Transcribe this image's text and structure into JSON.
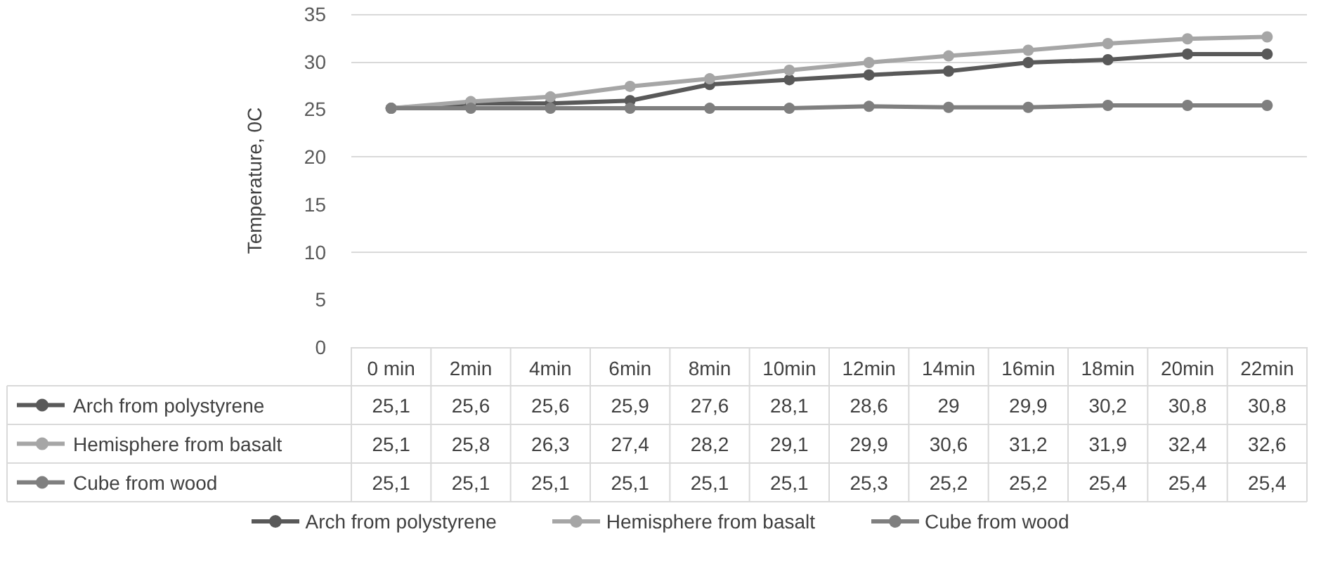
{
  "chart_data": {
    "type": "line",
    "ylabel": "Temperature, 0C",
    "categories": [
      "0 min",
      "2min",
      "4min",
      "6min",
      "8min",
      "10min",
      "12min",
      "14min",
      "16min",
      "18min",
      "20min",
      "22min"
    ],
    "series": [
      {
        "name": "Arch from polystyrene",
        "color": "#595959",
        "values": [
          25.1,
          25.6,
          25.6,
          25.9,
          27.6,
          28.1,
          28.6,
          29,
          29.9,
          30.2,
          30.8,
          30.8
        ],
        "value_labels": [
          "25,1",
          "25,6",
          "25,6",
          "25,9",
          "27,6",
          "28,1",
          "28,6",
          "29",
          "29,9",
          "30,2",
          "30,8",
          "30,8"
        ]
      },
      {
        "name": "Hemisphere from basalt",
        "color": "#a6a6a6",
        "values": [
          25.1,
          25.8,
          26.3,
          27.4,
          28.2,
          29.1,
          29.9,
          30.6,
          31.2,
          31.9,
          32.4,
          32.6
        ],
        "value_labels": [
          "25,1",
          "25,8",
          "26,3",
          "27,4",
          "28,2",
          "29,1",
          "29,9",
          "30,6",
          "31,2",
          "31,9",
          "32,4",
          "32,6"
        ]
      },
      {
        "name": "Cube from wood",
        "color": "#7f7f7f",
        "values": [
          25.1,
          25.1,
          25.1,
          25.1,
          25.1,
          25.1,
          25.3,
          25.2,
          25.2,
          25.4,
          25.4,
          25.4
        ],
        "value_labels": [
          "25,1",
          "25,1",
          "25,1",
          "25,1",
          "25,1",
          "25,1",
          "25,3",
          "25,2",
          "25,2",
          "25,4",
          "25,4",
          "25,4"
        ]
      }
    ],
    "ylim": [
      0,
      35
    ],
    "yticks": [
      0,
      5,
      10,
      15,
      20,
      25,
      30,
      35
    ],
    "grid": "y",
    "legend": "bottom",
    "marker": "circle"
  }
}
